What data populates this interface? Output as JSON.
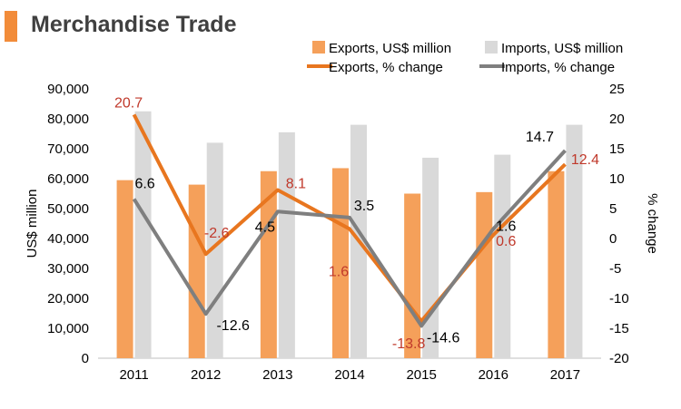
{
  "title": "Merchandise Trade",
  "colors": {
    "title_accent": "#f28c3a",
    "exports_bar": "#f5a05a",
    "imports_bar": "#d9d9d9",
    "exports_line": "#e8761f",
    "imports_line": "#7f7f7f",
    "exports_label": "#c0392b",
    "imports_label": "#000000"
  },
  "chart_data": {
    "type": "bar",
    "categories": [
      "2011",
      "2012",
      "2013",
      "2014",
      "2015",
      "2016",
      "2017"
    ],
    "series": [
      {
        "name": "Exports, US$ million",
        "type": "bar",
        "axis": "left",
        "values": [
          59500,
          58000,
          62500,
          63500,
          55000,
          55500,
          62500
        ]
      },
      {
        "name": "Imports, US$ million",
        "type": "bar",
        "axis": "left",
        "values": [
          82500,
          72000,
          75500,
          78000,
          67000,
          68000,
          78000
        ]
      },
      {
        "name": "Exports, % change",
        "type": "line",
        "axis": "right",
        "values": [
          20.7,
          -2.6,
          8.1,
          1.6,
          -13.8,
          0.6,
          12.4
        ]
      },
      {
        "name": "Imports, % change",
        "type": "line",
        "axis": "right",
        "values": [
          6.6,
          -12.6,
          4.5,
          3.5,
          -14.6,
          1.6,
          14.7
        ]
      }
    ],
    "data_labels": {
      "exports_change": [
        "20.7",
        "-2.6",
        "8.1",
        "1.6",
        "-13.8",
        "0.6",
        "12.4"
      ],
      "imports_change": [
        "6.6",
        "-12.6",
        "4.5",
        "3.5",
        "-14.6",
        "1.6",
        "14.7"
      ]
    },
    "ylabel": "US$ million",
    "y2label": "% change",
    "ylim": [
      0,
      90000
    ],
    "y2lim": [
      -20,
      25
    ],
    "yticks": [
      "0",
      "10,000",
      "20,000",
      "30,000",
      "40,000",
      "50,000",
      "60,000",
      "70,000",
      "80,000",
      "90,000"
    ],
    "y2ticks": [
      "-20",
      "-15",
      "-10",
      "-5",
      "0",
      "5",
      "10",
      "15",
      "20",
      "25"
    ],
    "legend": [
      {
        "label": "Exports, US$ million",
        "kind": "bar"
      },
      {
        "label": "Imports, US$ million",
        "kind": "bar"
      },
      {
        "label": "Exports, % change",
        "kind": "line"
      },
      {
        "label": "Imports, % change",
        "kind": "line"
      }
    ],
    "legend_position": "top-right",
    "grid": false
  }
}
